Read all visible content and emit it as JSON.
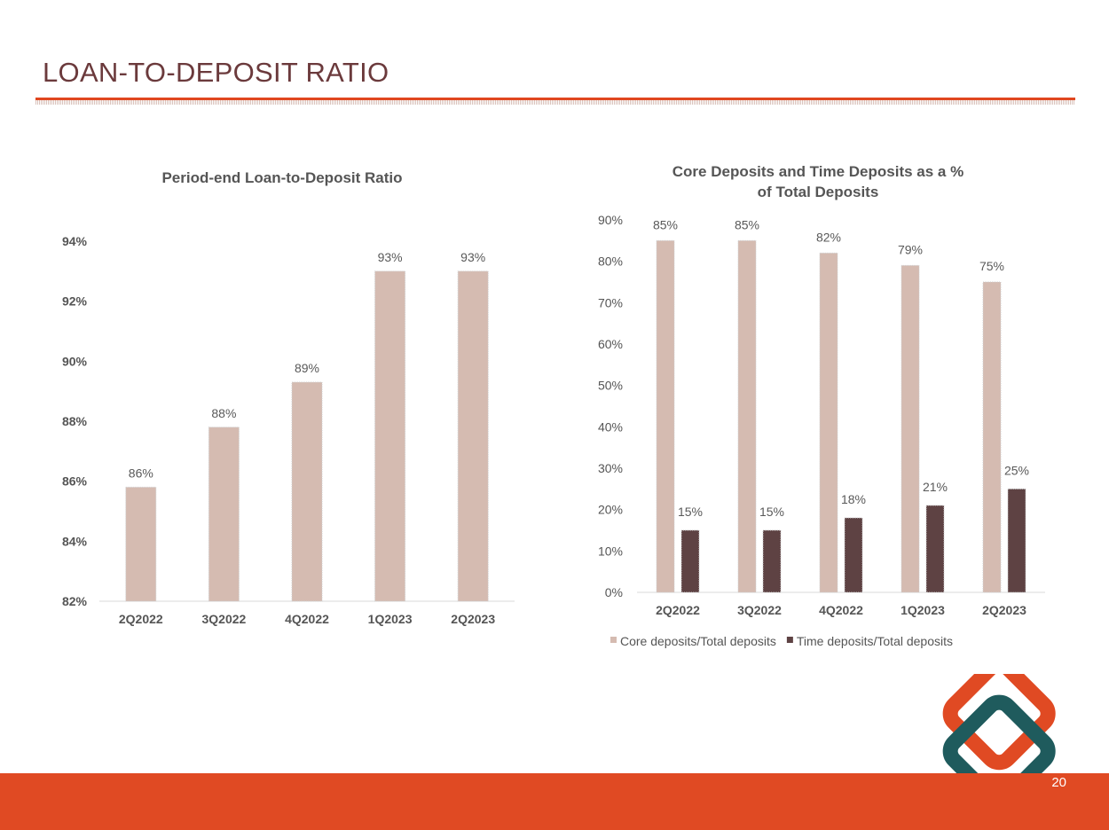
{
  "slide": {
    "title": "LOAN-TO-DEPOSIT RATIO",
    "page_number": "20",
    "accent_color": "#e04a23",
    "title_color": "#6b3a3c"
  },
  "logo": {
    "icon": "interlocked-diamonds-logo",
    "colors": [
      "#e04a23",
      "#1f5b5d"
    ]
  },
  "chart_data": [
    {
      "type": "bar",
      "title": "Period-end Loan-to-Deposit Ratio",
      "categories": [
        "2Q2022",
        "3Q2022",
        "4Q2022",
        "1Q2023",
        "2Q2023"
      ],
      "values": [
        85.8,
        87.8,
        89.3,
        93.0,
        93.0
      ],
      "data_labels": [
        "86%",
        "88%",
        "89%",
        "93%",
        "93%"
      ],
      "ylim": [
        82,
        94
      ],
      "yticks": [
        "82%",
        "84%",
        "86%",
        "88%",
        "90%",
        "92%",
        "94%"
      ],
      "color": "#d5bbb1",
      "grid": false,
      "legend": "none"
    },
    {
      "type": "bar",
      "title_lines": [
        "Core Deposits and Time Deposits as a %",
        "of Total Deposits"
      ],
      "categories": [
        "2Q2022",
        "3Q2022",
        "4Q2022",
        "1Q2023",
        "2Q2023"
      ],
      "series": [
        {
          "name": "Core deposits/Total deposits",
          "values": [
            85,
            85,
            82,
            79,
            75
          ],
          "data_labels": [
            "85%",
            "85%",
            "82%",
            "79%",
            "75%"
          ],
          "color": "#d5bbb1"
        },
        {
          "name": "Time deposits/Total deposits",
          "values": [
            15,
            15,
            18,
            21,
            25
          ],
          "data_labels": [
            "15%",
            "15%",
            "18%",
            "21%",
            "25%"
          ],
          "color": "#5e4243"
        }
      ],
      "ylim": [
        0,
        90
      ],
      "yticks": [
        "0%",
        "10%",
        "20%",
        "30%",
        "40%",
        "50%",
        "60%",
        "70%",
        "80%",
        "90%"
      ],
      "grid": false,
      "legend": "bottom"
    }
  ]
}
